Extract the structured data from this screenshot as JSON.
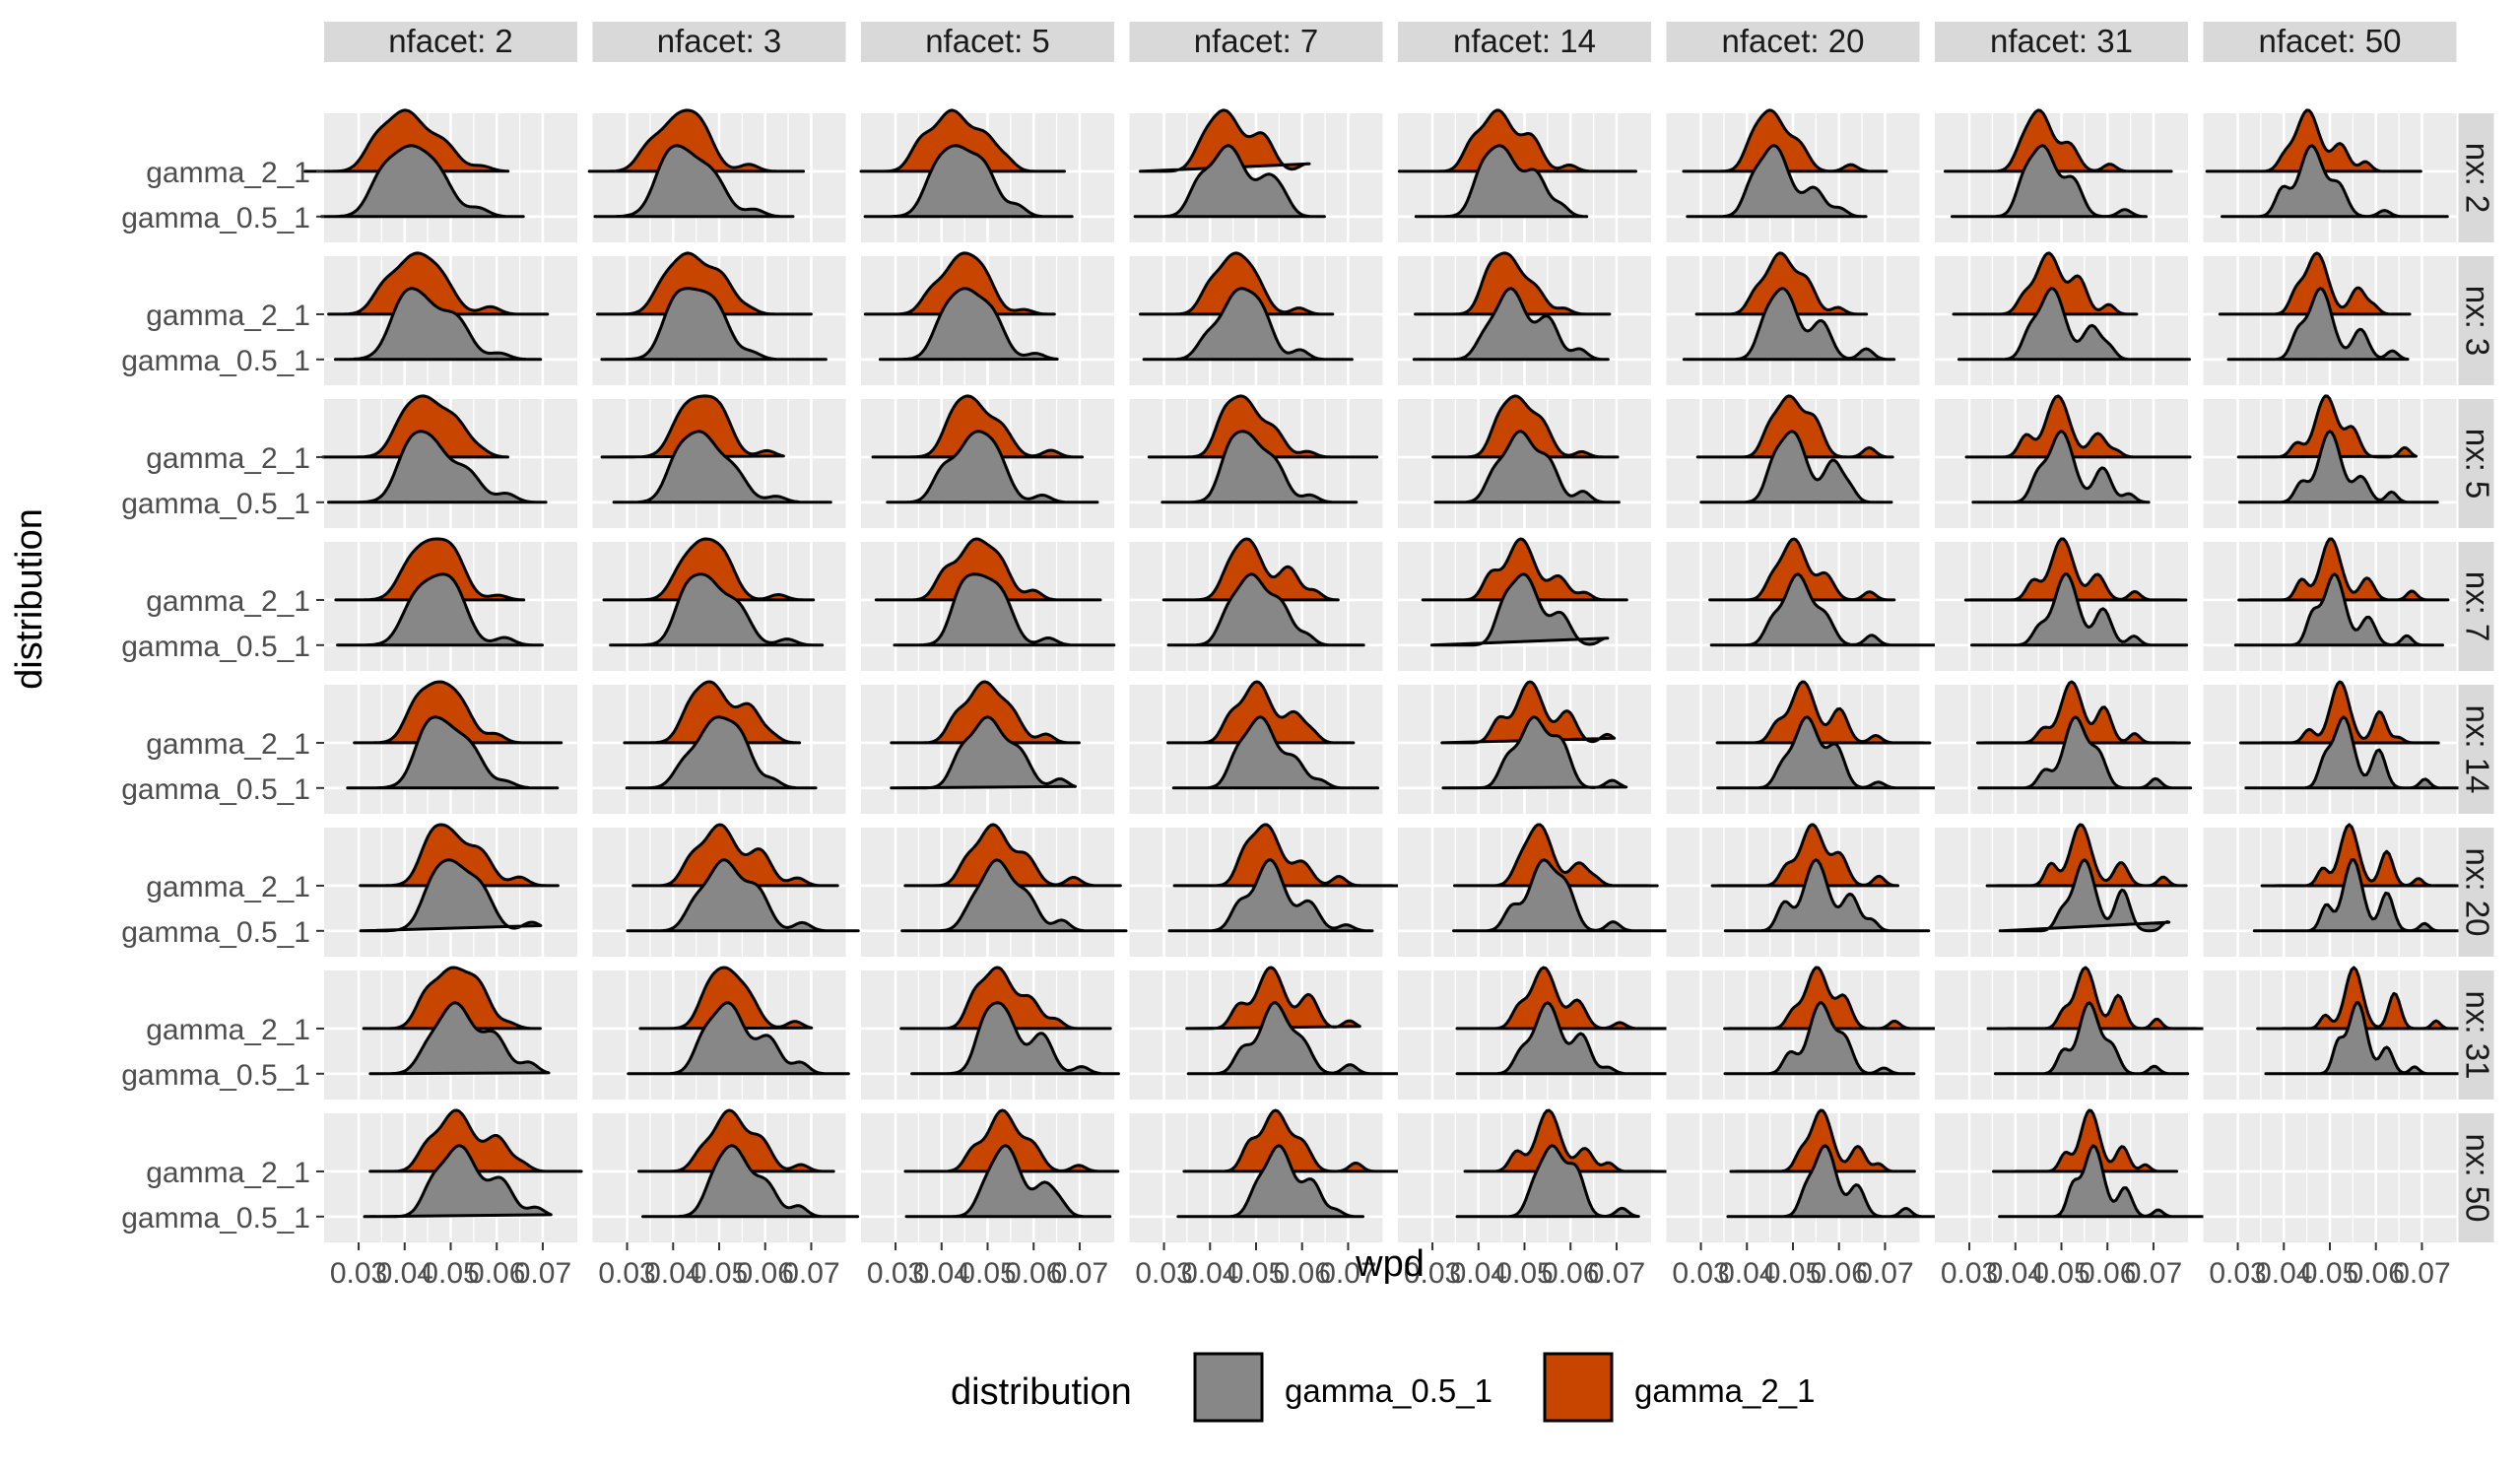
{
  "chart_data": {
    "type": "area",
    "subtype": "ridgeline-density-facet-grid",
    "xlabel": "wpd",
    "ylabel": "distribution",
    "x_ticks": [
      0.03,
      0.04,
      0.05,
      0.06,
      0.07
    ],
    "x_tick_labels": [
      "0.03",
      "0.04",
      "0.05",
      "0.06",
      "0.07"
    ],
    "xlim": [
      0.0225,
      0.0775
    ],
    "y_categories": [
      "gamma_2_1",
      "gamma_0.5_1"
    ],
    "col_facet_labels": [
      "nfacet: 2",
      "nfacet: 3",
      "nfacet: 5",
      "nfacet: 7",
      "nfacet: 14",
      "nfacet: 20",
      "nfacet: 31",
      "nfacet: 50"
    ],
    "row_facet_labels": [
      "nx: 2",
      "nx: 3",
      "nx: 5",
      "nx: 7",
      "nx: 14",
      "nx: 20",
      "nx: 31",
      "nx: 50"
    ],
    "nfacet_values": [
      2,
      3,
      5,
      7,
      14,
      20,
      31,
      50
    ],
    "nx_values": [
      2,
      3,
      5,
      7,
      14,
      20,
      31,
      50
    ],
    "legend": {
      "title": "distribution",
      "position": "bottom",
      "entries": [
        {
          "label": "gamma_0.5_1",
          "color": "#878787"
        },
        {
          "label": "gamma_2_1",
          "color": "#C84500"
        }
      ]
    },
    "series": [
      {
        "name": "gamma_2_1",
        "color": "#C84500",
        "mode_wpd_by_nx_row": [
          0.041,
          0.043,
          0.045,
          0.046,
          0.048,
          0.05,
          0.051,
          0.052
        ],
        "mode_shift_per_nfacet_col": [
          0,
          0.001,
          0.002,
          0.003,
          0.004,
          0.005,
          0.005,
          0.005
        ]
      },
      {
        "name": "gamma_0.5_1",
        "color": "#878787",
        "mode_wpd_by_nx_row": [
          0.041,
          0.043,
          0.045,
          0.046,
          0.048,
          0.05,
          0.051,
          0.052
        ],
        "mode_shift_per_nfacet_col": [
          0,
          0.001,
          0.002,
          0.003,
          0.004,
          0.005,
          0.005,
          0.005
        ]
      }
    ],
    "grid": true,
    "panel_background": "#EBEBEB",
    "strip_background": "#D9D9D9"
  }
}
